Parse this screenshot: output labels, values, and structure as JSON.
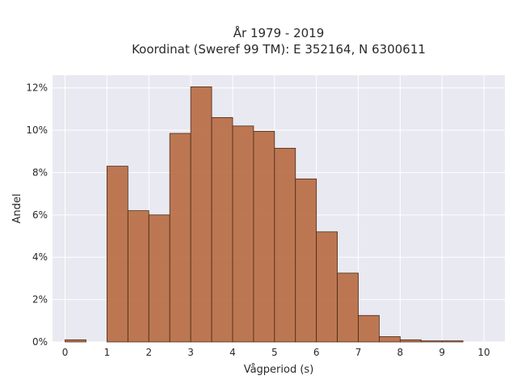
{
  "chart_data": {
    "type": "bar",
    "title_line1": "År 1979 - 2019",
    "title_line2": "Koordinat (Sweref 99 TM): E 352164, N 6300611",
    "xlabel": "Vågperiod (s)",
    "ylabel": "Andel",
    "bin_width": 0.5,
    "x": [
      0,
      0.5,
      1,
      1.5,
      2,
      2.5,
      3,
      3.5,
      4,
      4.5,
      5,
      5.5,
      6,
      6.5,
      7,
      7.5,
      8,
      8.5,
      9,
      9.5
    ],
    "values": [
      0.1,
      0.0,
      8.3,
      6.2,
      6.0,
      9.85,
      12.05,
      10.6,
      10.2,
      9.95,
      9.15,
      7.7,
      5.2,
      3.25,
      1.25,
      0.25,
      0.1,
      0.05,
      0.05,
      0.0
    ],
    "xlim": [
      -0.3,
      10.5
    ],
    "ylim": [
      0,
      12.6
    ],
    "xticks": [
      0,
      1,
      2,
      3,
      4,
      5,
      6,
      7,
      8,
      9,
      10
    ],
    "xtick_labels": [
      "0",
      "1",
      "2",
      "3",
      "4",
      "5",
      "6",
      "7",
      "8",
      "9",
      "10"
    ],
    "yticks": [
      0,
      2,
      4,
      6,
      8,
      10,
      12
    ],
    "ytick_labels": [
      "0%",
      "2%",
      "4%",
      "6%",
      "8%",
      "10%",
      "12%"
    ],
    "grid": true,
    "bar_color": "#b5673b",
    "bar_edge_color": "#4a2a18",
    "plot_background": "#e9e9f1"
  }
}
